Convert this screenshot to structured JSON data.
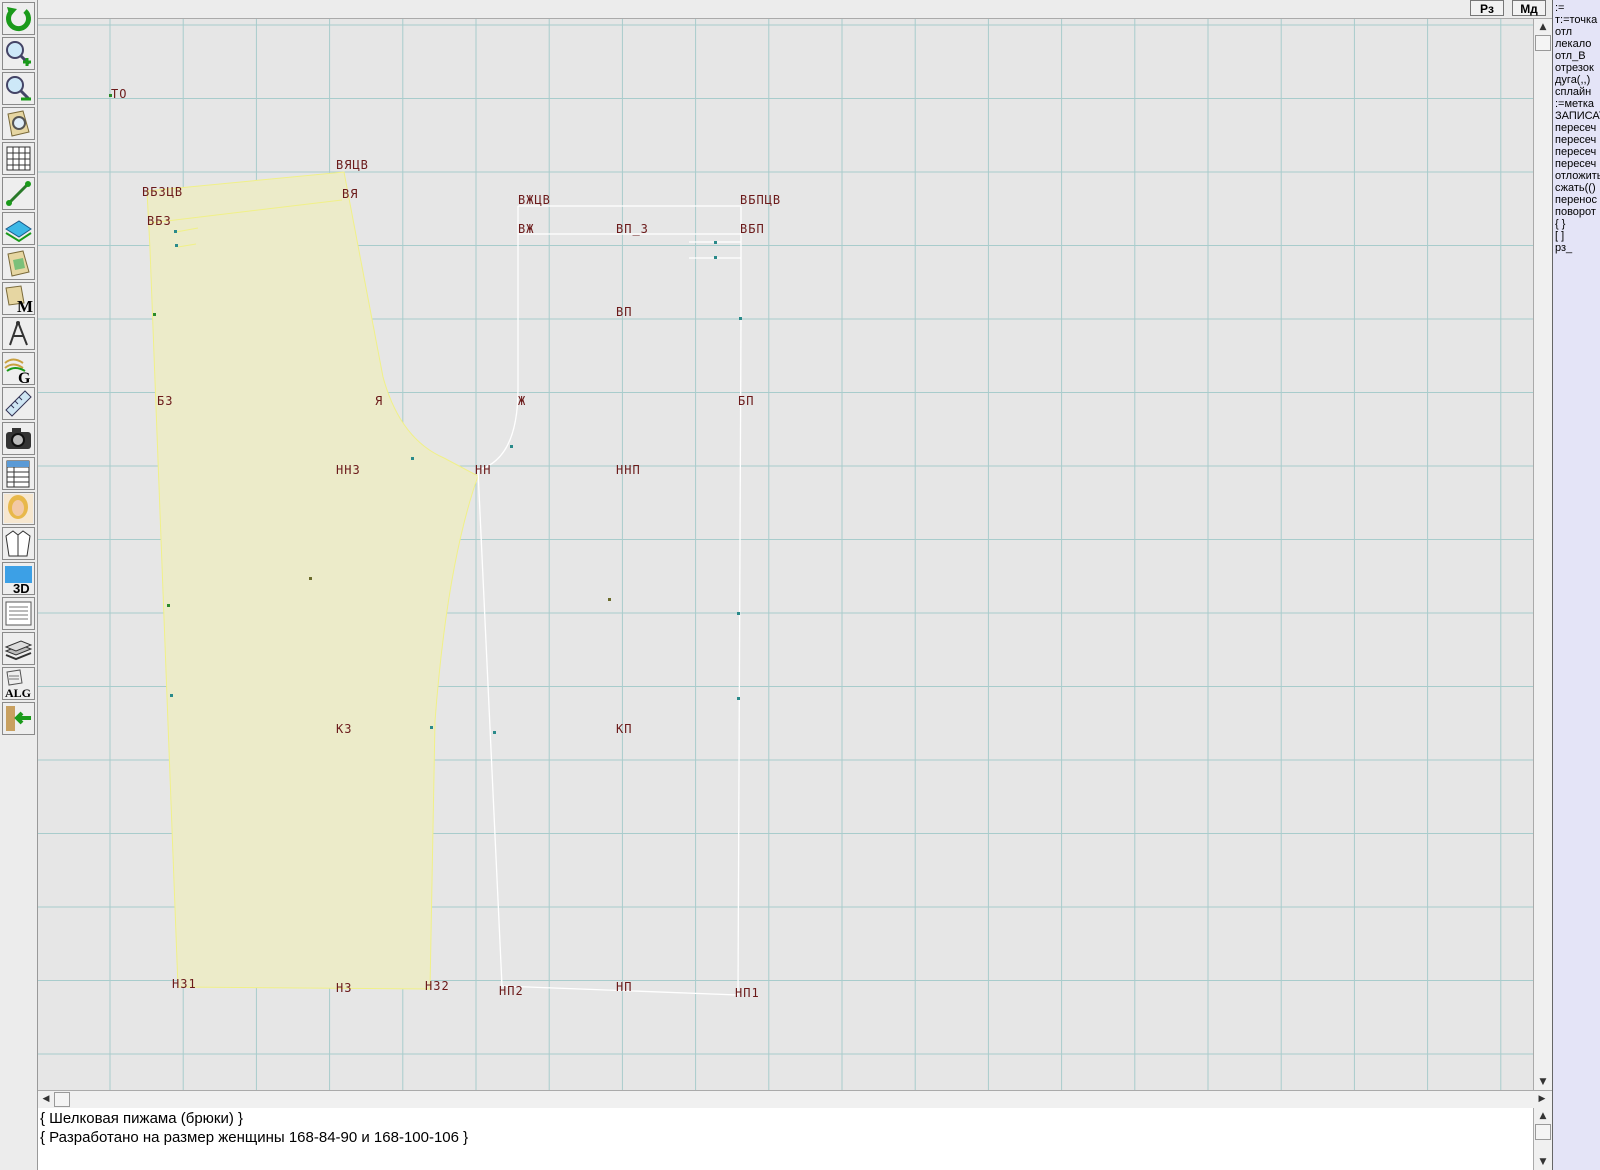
{
  "toolbar": {
    "tools": [
      {
        "name": "refresh-tool",
        "icon": "circular-arrow-icon"
      },
      {
        "name": "zoom-in-tool",
        "icon": "zoom-in-icon"
      },
      {
        "name": "zoom-out-tool",
        "icon": "zoom-out-icon"
      },
      {
        "name": "magnify-pattern-tool",
        "icon": "pattern-magnifier-icon"
      },
      {
        "name": "grid-tool",
        "icon": "grid-icon"
      },
      {
        "name": "segment-tool",
        "icon": "line-segment-icon"
      },
      {
        "name": "layer-tool",
        "icon": "layers-icon"
      },
      {
        "name": "pattern-piece-tool",
        "icon": "pattern-piece-icon"
      },
      {
        "name": "measurements-tool",
        "icon": "measurements-m-icon"
      },
      {
        "name": "compass-tool",
        "icon": "compass-icon"
      },
      {
        "name": "grading-tool",
        "icon": "grading-g-icon"
      },
      {
        "name": "ruler-tool",
        "icon": "ruler-icon"
      },
      {
        "name": "camera-tool",
        "icon": "camera-icon"
      },
      {
        "name": "table-tool",
        "icon": "spreadsheet-icon"
      },
      {
        "name": "avatar-tool",
        "icon": "woman-avatar-icon"
      },
      {
        "name": "garment-tool",
        "icon": "jacket-icon"
      },
      {
        "name": "3d-tool",
        "icon": "3d-icon"
      },
      {
        "name": "document-tool",
        "icon": "document-icon"
      },
      {
        "name": "library-tool",
        "icon": "books-icon"
      },
      {
        "name": "algorithm-tool",
        "icon": "alg-icon"
      },
      {
        "name": "exit-tool",
        "icon": "exit-arrow-icon"
      }
    ]
  },
  "topbar": {
    "rz_label": "Рз",
    "md_label": "Мд"
  },
  "canvas": {
    "colors": {
      "background": "#e6e6e6",
      "grid": "#a8cccc",
      "piece_fill": "#ecebc9",
      "piece_outline": "#f0f088",
      "outline_white": "#ffffff",
      "label": "#6b1a1a"
    },
    "labels": {
      "to": "ТО",
      "vyatsv": "ВЯЦВ",
      "vbztsv": "ВБЗЦВ",
      "vya": "ВЯ",
      "vbz": "ВБЗ",
      "vzhtsv": "ВЖЦВ",
      "vbptsv": "ВБПЦВ",
      "vzh": "ВЖ",
      "vp3": "ВП_3",
      "vbp": "ВБП",
      "vp": "ВП",
      "bz": "БЗ",
      "ya": "Я",
      "zh": "Ж",
      "bp": "БП",
      "nnz": "ННЗ",
      "nn": "НН",
      "nnp": "ННП",
      "kz": "КЗ",
      "kp": "КП",
      "nz1": "НЗ1",
      "nz": "НЗ",
      "nz2": "НЗ2",
      "np2": "НП2",
      "np": "НП",
      "np1": "НП1"
    }
  },
  "right_panel": {
    "items": [
      ":=",
      "т:=точка",
      "отл",
      "лекало",
      "отл_В",
      "отрезок",
      "дуга(,,)",
      "сплайн",
      ":=метка",
      "ЗАПИСАТЬ",
      "пересеч",
      "пересеч",
      "пересеч",
      "пересеч",
      "отложить",
      "сжать(()",
      "перенос",
      "поворот",
      "{ }",
      "[ ]",
      "рз_"
    ]
  },
  "bottom_panel": {
    "line1": "{   Шелковая пижама (брюки) }",
    "line2": "{ Разработано на размер женщины 168-84-90 и 168-100-106 }"
  }
}
